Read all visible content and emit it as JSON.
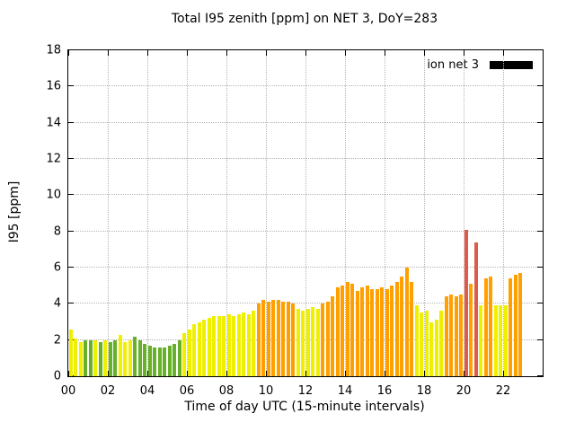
{
  "chart_data": {
    "type": "bar",
    "title": "Total I95 zenith [ppm] on NET 3, DoY=283",
    "xlabel": "Time of day UTC (15-minute intervals)",
    "ylabel": "I95 [ppm]",
    "legend": {
      "label": "ion net 3",
      "position": "top-right",
      "swatch_color": "#000000"
    },
    "grid": true,
    "xlim_hours": [
      0,
      24
    ],
    "ylim": [
      0,
      18
    ],
    "bar_interval_hours": 0.25,
    "x_ticks": [
      {
        "h": 0,
        "label": "00"
      },
      {
        "h": 2,
        "label": "02"
      },
      {
        "h": 4,
        "label": "04"
      },
      {
        "h": 6,
        "label": "06"
      },
      {
        "h": 8,
        "label": "08"
      },
      {
        "h": 10,
        "label": "10"
      },
      {
        "h": 12,
        "label": "12"
      },
      {
        "h": 14,
        "label": "14"
      },
      {
        "h": 16,
        "label": "16"
      },
      {
        "h": 18,
        "label": "18"
      },
      {
        "h": 20,
        "label": "20"
      },
      {
        "h": 22,
        "label": "22"
      }
    ],
    "y_ticks": [
      {
        "v": 0,
        "label": "0"
      },
      {
        "v": 2,
        "label": "2"
      },
      {
        "v": 4,
        "label": "4"
      },
      {
        "v": 6,
        "label": "6"
      },
      {
        "v": 8,
        "label": "8"
      },
      {
        "v": 10,
        "label": "10"
      },
      {
        "v": 12,
        "label": "12"
      },
      {
        "v": 14,
        "label": "14"
      },
      {
        "v": 16,
        "label": "16"
      },
      {
        "v": 18,
        "label": "18"
      }
    ],
    "palette": {
      "green": "#66b02a",
      "yellow": "#efef00",
      "orange": "#ffa000",
      "red": "#df5a4d"
    },
    "bars_columns": [
      "time",
      "value",
      "color"
    ],
    "bars": [
      [
        "00:00",
        2.6,
        "yellow"
      ],
      [
        "00:15",
        2.1,
        "yellow"
      ],
      [
        "00:30",
        1.9,
        "yellow"
      ],
      [
        "00:45",
        2.0,
        "green"
      ],
      [
        "01:00",
        2.0,
        "green"
      ],
      [
        "01:15",
        2.0,
        "yellow"
      ],
      [
        "01:30",
        1.9,
        "green"
      ],
      [
        "01:45",
        2.0,
        "yellow"
      ],
      [
        "02:00",
        1.9,
        "green"
      ],
      [
        "02:15",
        2.0,
        "green"
      ],
      [
        "02:30",
        2.3,
        "yellow"
      ],
      [
        "02:45",
        1.9,
        "yellow"
      ],
      [
        "03:00",
        2.0,
        "yellow"
      ],
      [
        "03:15",
        2.2,
        "green"
      ],
      [
        "03:30",
        2.0,
        "green"
      ],
      [
        "03:45",
        1.8,
        "green"
      ],
      [
        "04:00",
        1.7,
        "green"
      ],
      [
        "04:15",
        1.6,
        "green"
      ],
      [
        "04:30",
        1.6,
        "green"
      ],
      [
        "04:45",
        1.6,
        "green"
      ],
      [
        "05:00",
        1.7,
        "green"
      ],
      [
        "05:15",
        1.8,
        "green"
      ],
      [
        "05:30",
        2.0,
        "green"
      ],
      [
        "05:45",
        2.4,
        "yellow"
      ],
      [
        "06:00",
        2.6,
        "yellow"
      ],
      [
        "06:15",
        2.9,
        "yellow"
      ],
      [
        "06:30",
        3.0,
        "yellow"
      ],
      [
        "06:45",
        3.1,
        "yellow"
      ],
      [
        "07:00",
        3.2,
        "yellow"
      ],
      [
        "07:15",
        3.3,
        "yellow"
      ],
      [
        "07:30",
        3.3,
        "yellow"
      ],
      [
        "07:45",
        3.3,
        "yellow"
      ],
      [
        "08:00",
        3.4,
        "yellow"
      ],
      [
        "08:15",
        3.3,
        "yellow"
      ],
      [
        "08:30",
        3.4,
        "yellow"
      ],
      [
        "08:45",
        3.5,
        "yellow"
      ],
      [
        "09:00",
        3.4,
        "yellow"
      ],
      [
        "09:15",
        3.6,
        "yellow"
      ],
      [
        "09:30",
        4.0,
        "orange"
      ],
      [
        "09:45",
        4.2,
        "orange"
      ],
      [
        "10:00",
        4.1,
        "orange"
      ],
      [
        "10:15",
        4.2,
        "orange"
      ],
      [
        "10:30",
        4.2,
        "orange"
      ],
      [
        "10:45",
        4.1,
        "orange"
      ],
      [
        "11:00",
        4.1,
        "orange"
      ],
      [
        "11:15",
        4.0,
        "orange"
      ],
      [
        "11:30",
        3.7,
        "yellow"
      ],
      [
        "11:45",
        3.6,
        "yellow"
      ],
      [
        "12:00",
        3.7,
        "yellow"
      ],
      [
        "12:15",
        3.8,
        "yellow"
      ],
      [
        "12:30",
        3.7,
        "yellow"
      ],
      [
        "12:45",
        4.0,
        "orange"
      ],
      [
        "13:00",
        4.1,
        "orange"
      ],
      [
        "13:15",
        4.4,
        "orange"
      ],
      [
        "13:30",
        4.9,
        "orange"
      ],
      [
        "13:45",
        5.0,
        "orange"
      ],
      [
        "14:00",
        5.2,
        "orange"
      ],
      [
        "14:15",
        5.1,
        "orange"
      ],
      [
        "14:30",
        4.7,
        "orange"
      ],
      [
        "14:45",
        4.9,
        "orange"
      ],
      [
        "15:00",
        5.0,
        "orange"
      ],
      [
        "15:15",
        4.8,
        "orange"
      ],
      [
        "15:30",
        4.8,
        "orange"
      ],
      [
        "15:45",
        4.9,
        "orange"
      ],
      [
        "16:00",
        4.8,
        "orange"
      ],
      [
        "16:15",
        5.0,
        "orange"
      ],
      [
        "16:30",
        5.2,
        "orange"
      ],
      [
        "16:45",
        5.5,
        "orange"
      ],
      [
        "17:00",
        6.0,
        "orange"
      ],
      [
        "17:15",
        5.2,
        "orange"
      ],
      [
        "17:30",
        3.9,
        "yellow"
      ],
      [
        "17:45",
        3.5,
        "yellow"
      ],
      [
        "18:00",
        3.6,
        "yellow"
      ],
      [
        "18:15",
        3.0,
        "yellow"
      ],
      [
        "18:30",
        3.1,
        "yellow"
      ],
      [
        "18:45",
        3.6,
        "yellow"
      ],
      [
        "19:00",
        4.4,
        "orange"
      ],
      [
        "19:15",
        4.5,
        "orange"
      ],
      [
        "19:30",
        4.4,
        "orange"
      ],
      [
        "19:45",
        4.5,
        "orange"
      ],
      [
        "20:00",
        8.1,
        "red"
      ],
      [
        "20:15",
        5.1,
        "orange"
      ],
      [
        "20:30",
        7.4,
        "red"
      ],
      [
        "20:45",
        3.9,
        "yellow"
      ],
      [
        "21:00",
        5.4,
        "orange"
      ],
      [
        "21:15",
        5.5,
        "orange"
      ],
      [
        "21:30",
        3.9,
        "yellow"
      ],
      [
        "21:45",
        3.9,
        "yellow"
      ],
      [
        "22:00",
        3.9,
        "yellow"
      ],
      [
        "22:15",
        5.4,
        "orange"
      ],
      [
        "22:30",
        5.6,
        "orange"
      ],
      [
        "22:45",
        5.7,
        "orange"
      ]
    ]
  }
}
